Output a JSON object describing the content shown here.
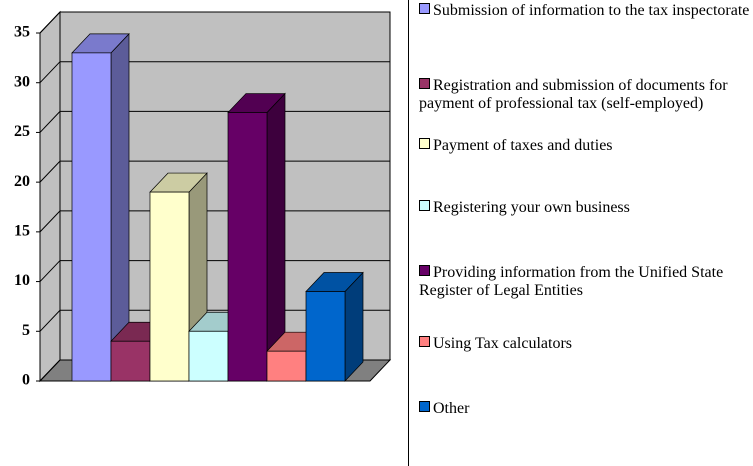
{
  "chart_data": {
    "type": "bar",
    "categories": [
      null
    ],
    "series": [
      {
        "name": "Submission of information to the tax inspectorate",
        "color": "#9999ff",
        "values": [
          33
        ]
      },
      {
        "name": "Registration and submission of documents for payment of professional tax (self-employed)",
        "color": "#993366",
        "values": [
          4
        ]
      },
      {
        "name": "Payment of taxes and duties",
        "color": "#ffffcc",
        "values": [
          19
        ]
      },
      {
        "name": "Registering your own business",
        "color": "#ccffff",
        "values": [
          5
        ]
      },
      {
        "name": "Providing information from the Unified State Register of Legal Entities",
        "color": "#660066",
        "values": [
          27
        ]
      },
      {
        "name": "Using Tax calculators",
        "color": "#ff8080",
        "values": [
          3
        ]
      },
      {
        "name": "Other",
        "color": "#0066cc",
        "values": [
          9
        ]
      }
    ],
    "ylim": [
      0,
      35
    ],
    "yticks": [
      0,
      5,
      10,
      15,
      20,
      25,
      30,
      35
    ],
    "grid": true,
    "legend": "right"
  }
}
